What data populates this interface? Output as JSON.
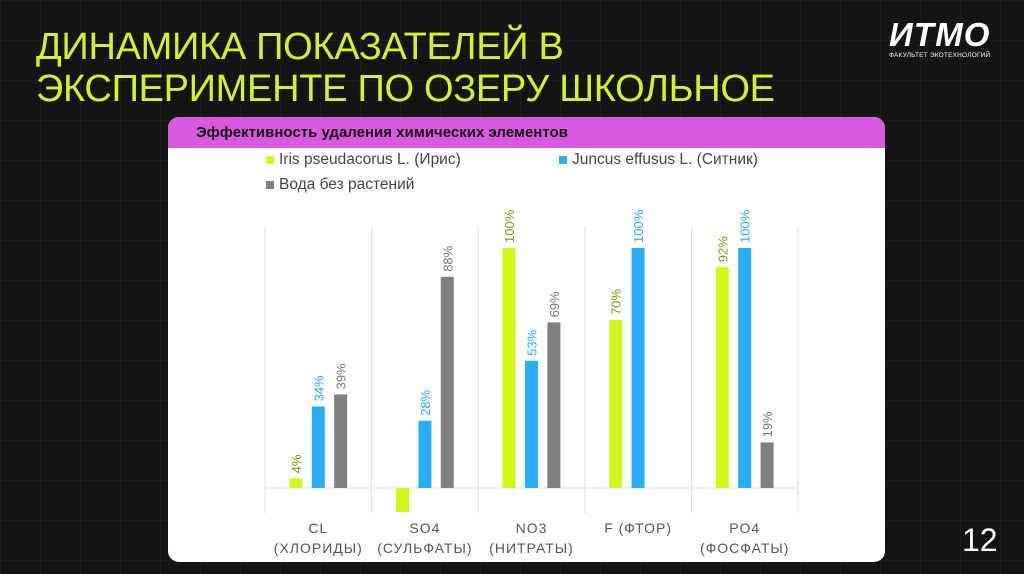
{
  "slide": {
    "title_lines": [
      "ДИНАМИКА ПОКАЗАТЕЛЕЙ В",
      "ЭКСПЕРИМЕНТЕ ПО ОЗЕРУ ШКОЛЬНОЕ"
    ],
    "logo": {
      "mark": "ИТМО",
      "subtitle": "ФАКУЛЬТЕТ ЭКОТЕХНОЛОГИЙ"
    },
    "page_number": "12",
    "colors": {
      "title": "#d6f22a",
      "header": "#d95bdd",
      "background": "#141414"
    }
  },
  "chart_data": {
    "type": "bar",
    "title": "Эффективность удаления химических элементов",
    "categories": [
      [
        "CL",
        "(ХЛОРИДЫ)"
      ],
      [
        "SO4",
        "(СУЛЬФАТЫ)"
      ],
      [
        "NO3",
        "(НИТРАТЫ)"
      ],
      [
        "F (ФТОР)",
        ""
      ],
      [
        "PO4",
        "(ФОСФАТЫ)"
      ]
    ],
    "series": [
      {
        "name": "Iris pseudacorus L. (Ирис)",
        "color": "#d4f51a",
        "label_color": "#7f9410",
        "values": [
          4,
          -10,
          100,
          70,
          92
        ],
        "labels": [
          "4%",
          "",
          "100%",
          "70%",
          "92%"
        ]
      },
      {
        "name": "Juncus effusus L. (Ситник)",
        "color": "#2badf8",
        "label_color": "#2aa9f0",
        "values": [
          34,
          28,
          53,
          100,
          100
        ],
        "labels": [
          "34%",
          "28%",
          "53%",
          "100%",
          "100%"
        ]
      },
      {
        "name": "Вода без растений",
        "color": "#808080",
        "label_color": "#777777",
        "values": [
          39,
          88,
          69,
          null,
          19
        ],
        "labels": [
          "39%",
          "88%",
          "69%",
          "",
          "19%"
        ]
      }
    ],
    "ylim": [
      -10,
      100
    ],
    "legend_position": "top",
    "grid": "vertical category separators"
  }
}
